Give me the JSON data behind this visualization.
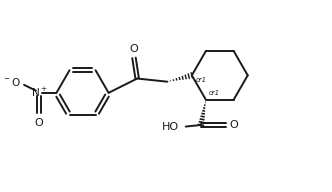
{
  "bg_color": "#ffffff",
  "line_color": "#1a1a1a",
  "line_width": 1.4,
  "font_size": 7.5,
  "figsize": [
    3.32,
    1.92
  ],
  "dpi": 100,
  "xlim": [
    0,
    10
  ],
  "ylim": [
    0,
    6
  ]
}
